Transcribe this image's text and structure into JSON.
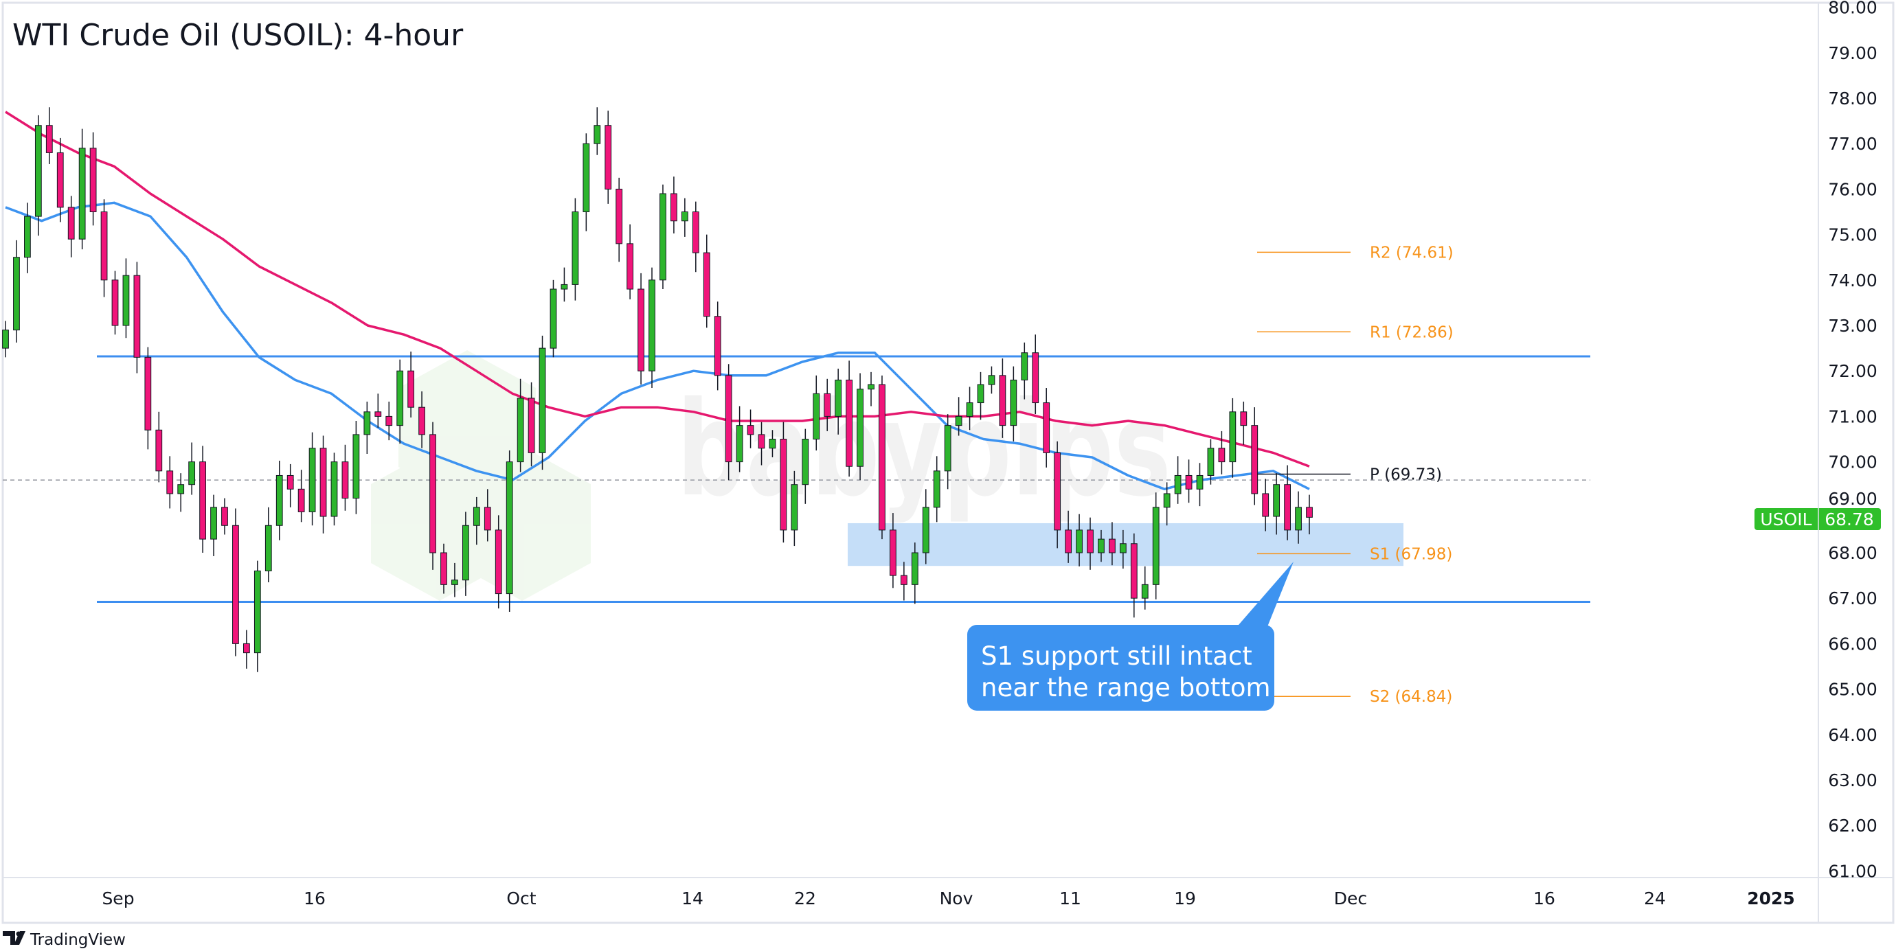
{
  "title": "WTI Crude Oil (USOIL): 4-hour",
  "footer": {
    "brand": "TradingView"
  },
  "watermark": "babypips",
  "price_badge": {
    "symbol": "USOIL",
    "value": "68.78",
    "color": "#2fbf2a"
  },
  "callout": {
    "lines": [
      "S1 support still intact",
      "near the range bottom"
    ],
    "color": "#3d93f0"
  },
  "colors": {
    "up": "#2db52d",
    "down": "#f0157a",
    "ma_fast": "#3d93f0",
    "ma_slow": "#e5186e",
    "range": "#3d8ef0",
    "zone": "#c2dcf8",
    "pivot_sr": "#f7931a",
    "pivot_p": "#131722"
  },
  "chart_data": {
    "type": "candlestick",
    "title": "WTI Crude Oil (USOIL): 4-hour",
    "ylim": [
      61,
      80
    ],
    "y_ticks": [
      "80.00",
      "79.00",
      "78.00",
      "77.00",
      "76.00",
      "75.00",
      "74.00",
      "73.00",
      "72.00",
      "71.00",
      "70.00",
      "69.00",
      "68.00",
      "67.00",
      "66.00",
      "65.00",
      "64.00",
      "63.00",
      "62.00",
      "61.00"
    ],
    "x_ticks": [
      {
        "label": "Sep",
        "bold": false
      },
      {
        "label": "16",
        "bold": false
      },
      {
        "label": "Oct",
        "bold": false
      },
      {
        "label": "14",
        "bold": false
      },
      {
        "label": "22",
        "bold": false
      },
      {
        "label": "Nov",
        "bold": false
      },
      {
        "label": "11",
        "bold": false
      },
      {
        "label": "19",
        "bold": false
      },
      {
        "label": "Dec",
        "bold": false
      },
      {
        "label": "16",
        "bold": false
      },
      {
        "label": "24",
        "bold": false
      },
      {
        "label": "2025",
        "bold": true
      }
    ],
    "closes": [
      72.9,
      74.5,
      75.4,
      77.4,
      76.8,
      75.6,
      74.9,
      76.9,
      75.5,
      74.0,
      73.0,
      74.1,
      72.3,
      70.7,
      69.8,
      69.3,
      69.5,
      70.0,
      68.3,
      69.0,
      68.6,
      66.0,
      65.8,
      67.6,
      68.6,
      69.7,
      69.4,
      68.9,
      70.3,
      68.8,
      70.0,
      69.2,
      70.6,
      71.1,
      71.0,
      70.8,
      72.0,
      71.2,
      70.6,
      68.0,
      67.3,
      67.4,
      68.6,
      69.0,
      68.5,
      67.1,
      70.0,
      71.4,
      70.2,
      72.5,
      73.8,
      73.9,
      75.5,
      77.0,
      77.4,
      76.0,
      74.8,
      73.8,
      72.0,
      74.0,
      75.9,
      75.3,
      75.5,
      74.6,
      73.2,
      71.9,
      70.0,
      70.8,
      70.6,
      70.3,
      70.5,
      68.5,
      69.5,
      70.5,
      71.5,
      71.0,
      71.8,
      69.9,
      71.6,
      71.7,
      68.5,
      67.5,
      67.3,
      68.0,
      69.0,
      69.8,
      70.8,
      71.0,
      71.3,
      71.7,
      71.9,
      70.8,
      71.8,
      72.4,
      71.3,
      70.2,
      68.5,
      68.0,
      68.5,
      68.0,
      68.3,
      68.0,
      68.2,
      67.0,
      67.3,
      69.0,
      69.3,
      69.7,
      69.4,
      69.7,
      70.3,
      70.0,
      71.1,
      70.8,
      69.3,
      68.8,
      69.5,
      68.5,
      69.0,
      68.78
    ],
    "series": [
      {
        "type": "line",
        "values": [
          75.6,
          75.3,
          75.6,
          75.7,
          75.4,
          74.5,
          73.3,
          72.3,
          71.8,
          71.5,
          70.9,
          70.4,
          70.1,
          69.8,
          69.6,
          70.1,
          70.9,
          71.5,
          71.8,
          72.0,
          71.9,
          71.9,
          72.2,
          72.4,
          72.4,
          71.6,
          70.8,
          70.5,
          70.4,
          70.2,
          70.1,
          69.7,
          69.4,
          69.6,
          69.7,
          69.8,
          69.4
        ]
      },
      {
        "type": "line",
        "values": [
          77.7,
          77.2,
          76.8,
          76.5,
          75.9,
          75.4,
          74.9,
          74.3,
          73.9,
          73.5,
          73.0,
          72.8,
          72.5,
          72.0,
          71.5,
          71.2,
          71.0,
          71.2,
          71.2,
          71.1,
          70.9,
          70.9,
          70.9,
          71.0,
          71.0,
          71.1,
          71.0,
          71.0,
          71.1,
          70.9,
          70.8,
          70.9,
          70.8,
          70.6,
          70.4,
          70.2,
          69.9
        ]
      }
    ],
    "range_lines": {
      "top": 72.32,
      "bottom": 66.92
    },
    "support_zone": [
      67.71,
      68.65
    ],
    "dashed_line": 69.6,
    "pivots": [
      {
        "label": "R2 (74.61)",
        "value": 74.61
      },
      {
        "label": "R1 (72.86)",
        "value": 72.86
      },
      {
        "label": "P (69.73)",
        "value": 69.73
      },
      {
        "label": "S1 (67.98)",
        "value": 67.98
      },
      {
        "label": "S2 (64.84)",
        "value": 64.84
      }
    ],
    "last_price": 68.78
  }
}
